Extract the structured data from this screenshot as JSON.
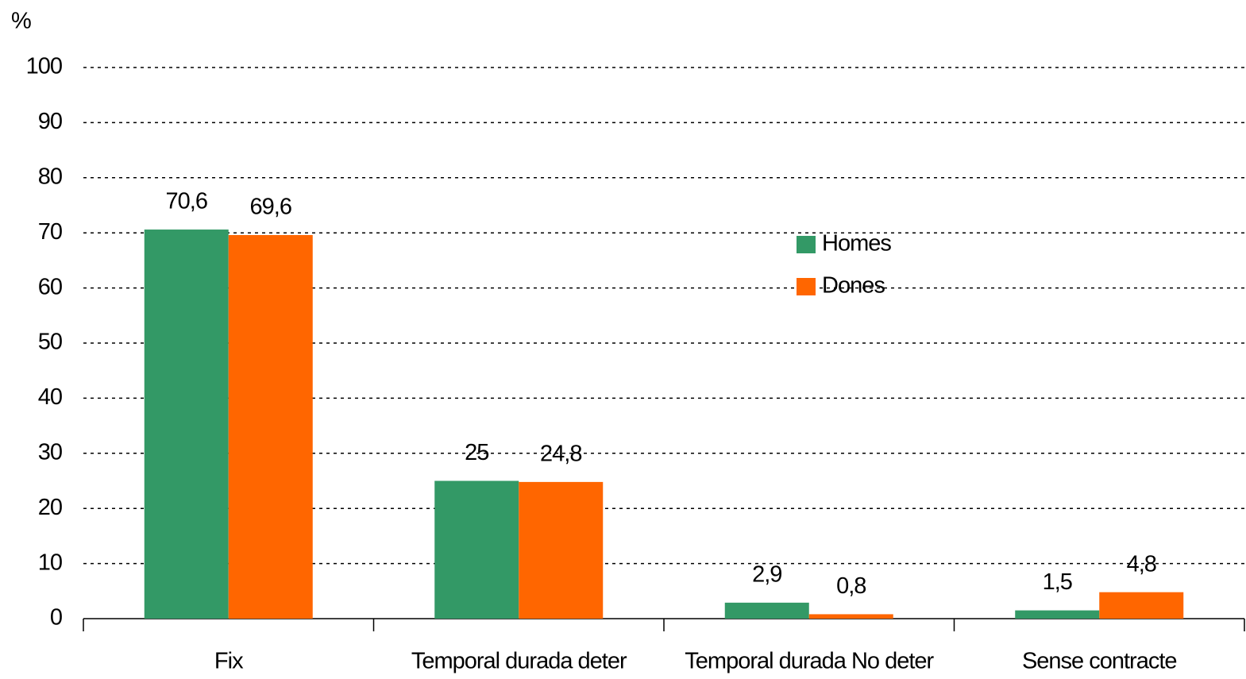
{
  "chart_data": {
    "type": "bar",
    "y_label": "%",
    "categories": [
      "Fix",
      "Temporal durada deter",
      "Temporal durada No deter",
      "Sense contracte"
    ],
    "series": [
      {
        "name": "Homes",
        "color": "#339966",
        "values": [
          70.6,
          25,
          2.9,
          1.5
        ],
        "value_labels": [
          "70,6",
          "25",
          "2,9",
          "1,5"
        ]
      },
      {
        "name": "Dones",
        "color": "#ff6600",
        "values": [
          69.6,
          24.8,
          0.8,
          4.8
        ],
        "value_labels": [
          "69,6",
          "24,8",
          "0,8",
          "4,8"
        ]
      }
    ],
    "ylim": [
      0,
      100
    ],
    "yticks": [
      0,
      10,
      20,
      30,
      40,
      50,
      60,
      70,
      80,
      90,
      100
    ],
    "grid": true,
    "legend": "right"
  }
}
